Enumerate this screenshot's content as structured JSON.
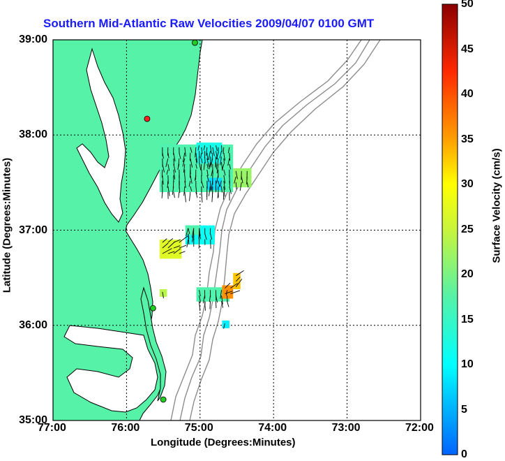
{
  "title": "Southern Mid-Atlantic Raw Velocities 2009/04/07 0100 GMT",
  "x_axis": {
    "label": "Longitude (Degrees:Minutes)",
    "ticks": [
      "77:00",
      "76:00",
      "75:00",
      "74:00",
      "73:00",
      "72:00"
    ]
  },
  "y_axis": {
    "label": "Latitude (Degrees:Minutes)",
    "ticks": [
      "39:00",
      "38:00",
      "37:00",
      "36:00",
      "35:00"
    ]
  },
  "colorbar": {
    "label": "Surface Velocity (cm/s)",
    "ticks": [
      "50",
      "45",
      "40",
      "35",
      "30",
      "25",
      "20",
      "15",
      "10",
      "5",
      "0"
    ],
    "min": 0,
    "max": 50
  },
  "colors": {
    "land": "#55f2a8",
    "water": "#ffffff",
    "coastline": "#000000",
    "bathymetry": "#8c8c8c",
    "title": "#1a1aff",
    "station_active": "#22cc22",
    "station_inactive": "#ff2020"
  },
  "stations": [
    {
      "lon": -75.07,
      "lat": 38.97,
      "status": "active"
    },
    {
      "lon": -75.72,
      "lat": 38.17,
      "status": "inactive"
    },
    {
      "lon": -75.64,
      "lat": 36.18,
      "status": "active"
    },
    {
      "lon": -75.5,
      "lat": 35.22,
      "status": "active"
    }
  ],
  "velocity_regions": [
    {
      "lon_min": -75.55,
      "lon_max": -74.55,
      "lat_min": 37.4,
      "lat_max": 37.9,
      "speed": 17
    },
    {
      "lon_min": -75.05,
      "lon_max": -74.7,
      "lat_min": 37.7,
      "lat_max": 37.92,
      "speed": 12
    },
    {
      "lon_min": -74.55,
      "lon_max": -74.3,
      "lat_min": 37.45,
      "lat_max": 37.65,
      "speed": 22
    },
    {
      "lon_min": -74.9,
      "lon_max": -74.7,
      "lat_min": 37.42,
      "lat_max": 37.55,
      "speed": 8
    },
    {
      "lon_min": -75.2,
      "lon_max": -74.8,
      "lat_min": 36.85,
      "lat_max": 37.05,
      "speed": 11
    },
    {
      "lon_min": -75.2,
      "lon_max": -75.0,
      "lat_min": 36.95,
      "lat_max": 37.05,
      "speed": 17
    },
    {
      "lon_min": -75.55,
      "lon_max": -75.25,
      "lat_min": 36.7,
      "lat_max": 36.9,
      "speed": 27
    },
    {
      "lon_min": -75.55,
      "lon_max": -75.45,
      "lat_min": 36.3,
      "lat_max": 36.38,
      "speed": 24
    },
    {
      "lon_min": -75.05,
      "lon_max": -74.6,
      "lat_min": 36.25,
      "lat_max": 36.4,
      "speed": 17
    },
    {
      "lon_min": -74.7,
      "lon_max": -74.55,
      "lat_min": 36.28,
      "lat_max": 36.42,
      "speed": 36
    },
    {
      "lon_min": -74.55,
      "lon_max": -74.45,
      "lat_min": 36.38,
      "lat_max": 36.55,
      "speed": 33
    },
    {
      "lon_min": -74.7,
      "lon_max": -74.6,
      "lat_min": 35.97,
      "lat_max": 36.05,
      "speed": 9
    }
  ]
}
